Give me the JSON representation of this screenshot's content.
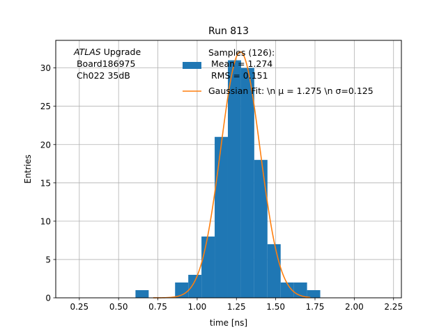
{
  "chart_data": {
    "type": "bar",
    "title": "Run 813",
    "xlabel": "time [ns]",
    "ylabel": "Entries",
    "xlim": [
      0.1,
      2.3
    ],
    "ylim": [
      0,
      33.6
    ],
    "xticks": [
      "0.25",
      "0.50",
      "0.75",
      "1.00",
      "1.25",
      "1.50",
      "1.75",
      "2.00",
      "2.25"
    ],
    "yticks": [
      "0",
      "5",
      "10",
      "15",
      "20",
      "25",
      "30"
    ],
    "grid": true,
    "legend_position": "top-center",
    "annotation": {
      "line1_italic": "ATLAS",
      "line1_rest": " Upgrade",
      "line2": " Board186975",
      "line3": " Ch022 35dB"
    },
    "series": [
      {
        "type": "histogram",
        "legend_lines": [
          "Samples (126):",
          " Mean = 1.274",
          " RMS = 0.151"
        ],
        "color": "#1f77b4",
        "bin_edges": [
          0.6075,
          0.6915,
          0.7755,
          0.8595,
          0.9435,
          1.0275,
          1.1115,
          1.1955,
          1.2795,
          1.3635,
          1.4475,
          1.5315,
          1.6155,
          1.6995,
          1.7835
        ],
        "counts": [
          1,
          0,
          0,
          2,
          3,
          8,
          21,
          31,
          30,
          18,
          7,
          2,
          2,
          1
        ]
      },
      {
        "type": "line",
        "legend_label": "Gaussian Fit: \\n μ = 1.275 \\n σ=0.125",
        "color": "#ff7f0e",
        "mean": 1.275,
        "sigma": 0.125,
        "amplitude": 32.1,
        "x_range": [
          0.72,
          1.72
        ]
      }
    ]
  }
}
